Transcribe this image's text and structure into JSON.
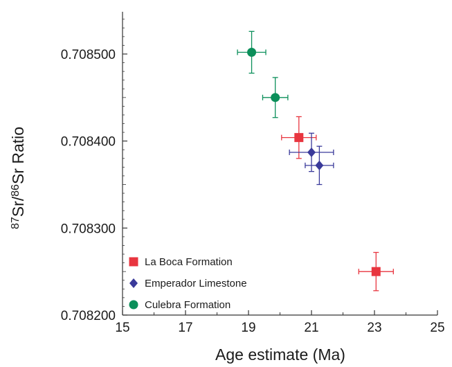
{
  "chart_data": {
    "type": "scatter",
    "title": "",
    "xlabel": "Age estimate (Ma)",
    "ylabel": {
      "sup1": "87",
      "sym1": "Sr/",
      "sup2": "86",
      "sym2": "Sr Ratio"
    },
    "xlim": [
      15,
      25
    ],
    "ylim": [
      0.7082,
      0.70855
    ],
    "xticks": [
      15,
      17,
      19,
      21,
      23,
      25
    ],
    "xtick_labels": [
      "15",
      "17",
      "19",
      "21",
      "23",
      "25"
    ],
    "yticks": [
      0.7082,
      0.7083,
      0.7084,
      0.7085
    ],
    "ytick_labels": [
      "0.708200",
      "0.708300",
      "0.708400",
      "0.708500"
    ],
    "grid": false,
    "legend_position": "bottom-left",
    "series": [
      {
        "name": "La Boca Formation",
        "marker": "square",
        "color": "#e8353f",
        "points": [
          {
            "x": 20.6,
            "y": 0.708404,
            "xerr": 0.55,
            "yerr": 2.4e-05
          },
          {
            "x": 23.05,
            "y": 0.70825,
            "xerr": 0.55,
            "yerr": 2.2e-05
          }
        ]
      },
      {
        "name": "Emperador Limestone",
        "marker": "diamond",
        "color": "#3a3a9a",
        "points": [
          {
            "x": 21.0,
            "y": 0.708387,
            "xerr": 0.7,
            "yerr": 2.2e-05
          },
          {
            "x": 21.25,
            "y": 0.708372,
            "xerr": 0.45,
            "yerr": 2.2e-05
          }
        ]
      },
      {
        "name": "Culebra Formation",
        "marker": "circle",
        "color": "#0b8f5a",
        "points": [
          {
            "x": 19.1,
            "y": 0.708502,
            "xerr": 0.45,
            "yerr": 2.4e-05
          },
          {
            "x": 19.85,
            "y": 0.70845,
            "xerr": 0.4,
            "yerr": 2.3e-05
          }
        ]
      }
    ]
  }
}
